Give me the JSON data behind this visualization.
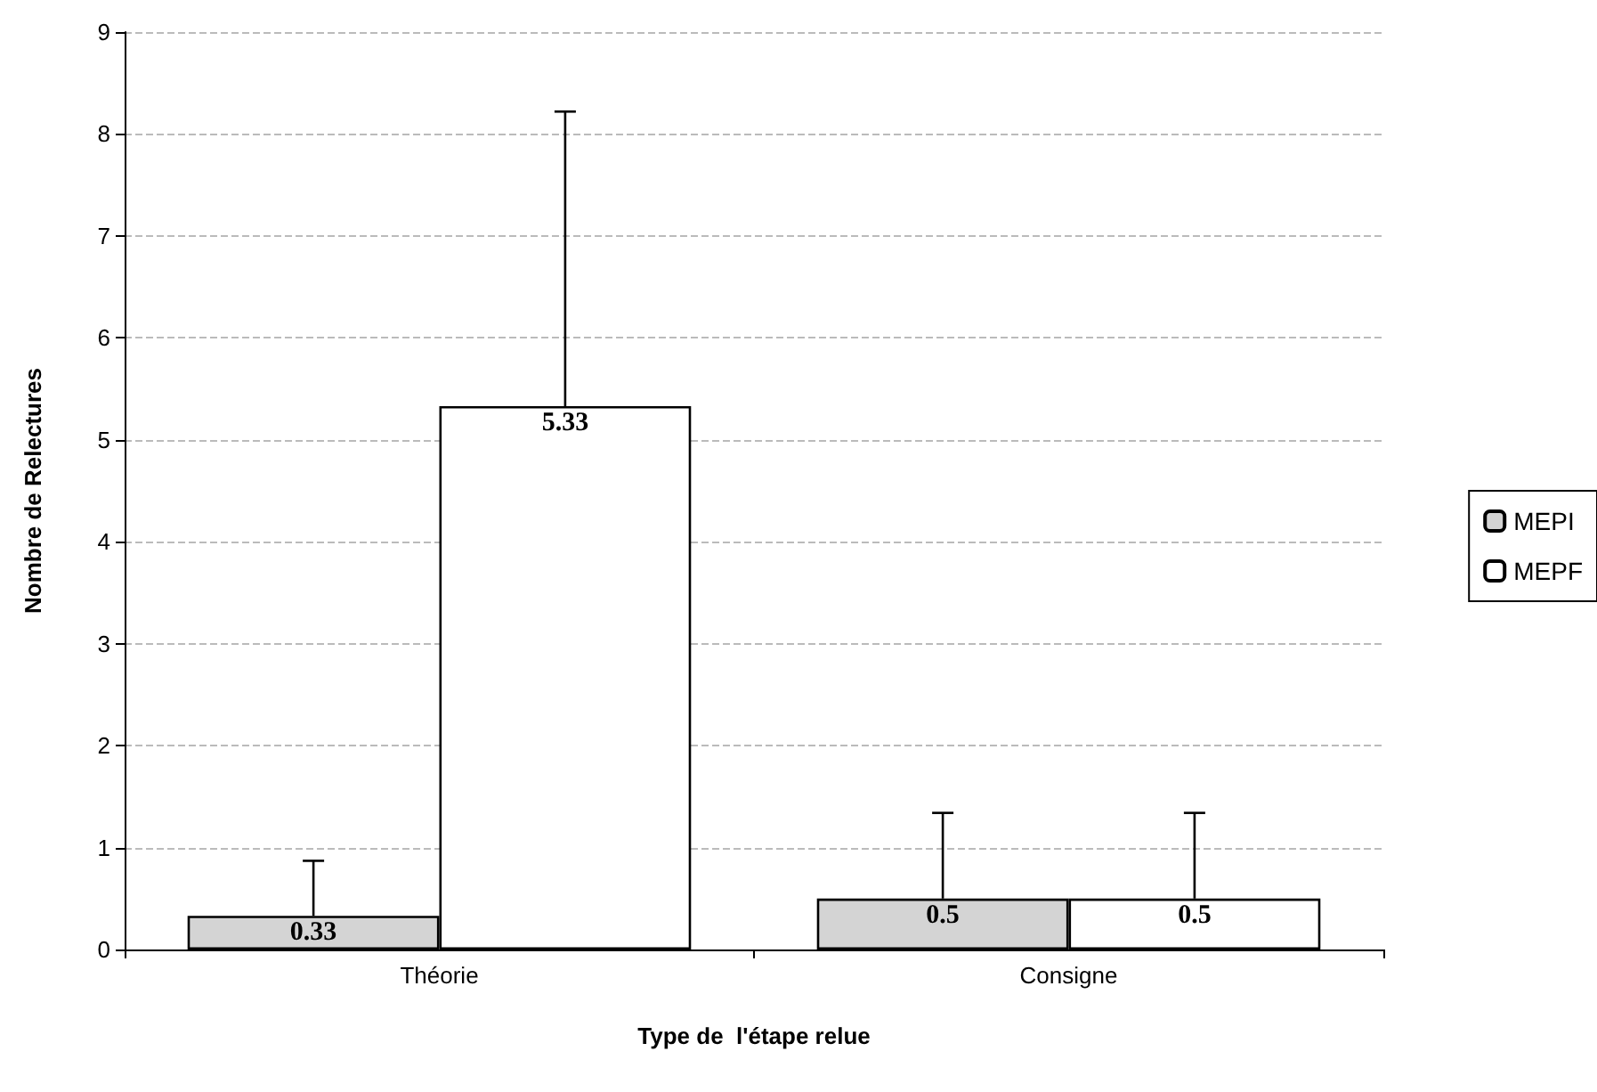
{
  "chart_data": {
    "type": "bar",
    "xlabel": "Type de  l'étape relue",
    "ylabel": "Nombre de Relectures",
    "categories": [
      "Théorie",
      "Consigne"
    ],
    "series": [
      {
        "name": "MEPI",
        "color": "#d4d4d4",
        "values": [
          0.33,
          0.5
        ],
        "errors": [
          [
            0.33,
            0.87
          ],
          [
            0.5,
            1.34
          ]
        ]
      },
      {
        "name": "MEPF",
        "color": "#ffffff",
        "values": [
          5.33,
          0.5
        ],
        "errors": [
          [
            5.33,
            8.22
          ],
          [
            0.5,
            1.34
          ]
        ]
      }
    ],
    "ylim": [
      0,
      9
    ],
    "yticks": [
      0,
      1,
      2,
      3,
      4,
      5,
      6,
      7,
      8,
      9
    ],
    "grid": "y",
    "legend": "right",
    "data_labels": true
  }
}
